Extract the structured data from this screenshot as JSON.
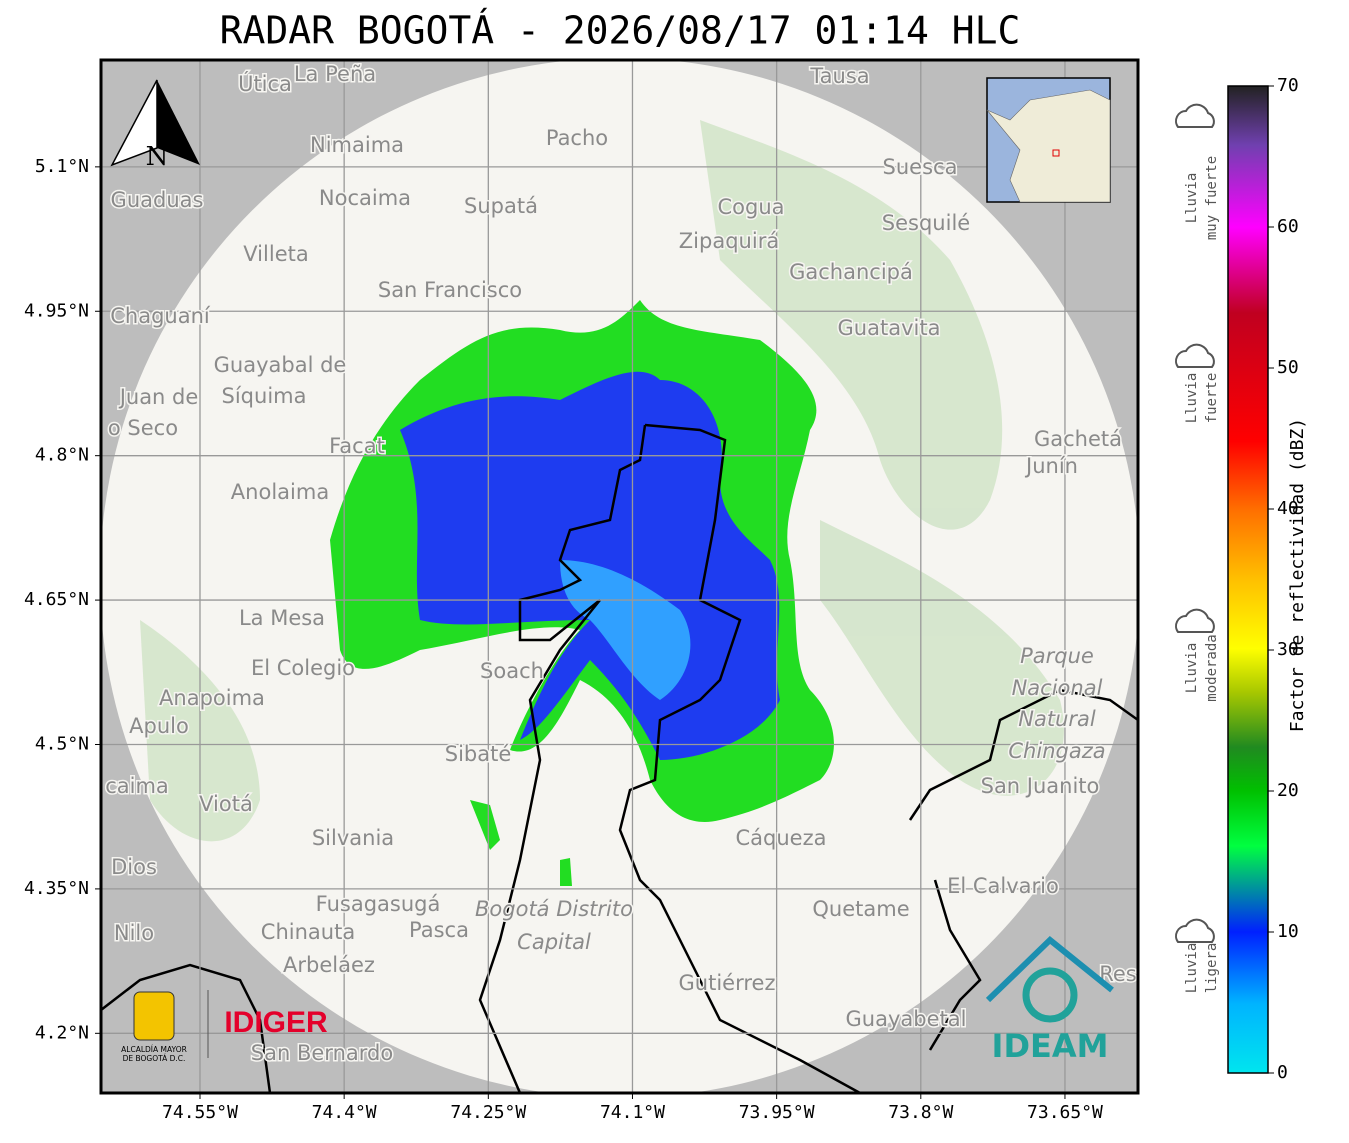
{
  "header": {
    "title": "RADAR BOGOTÁ - 2026/08/17 01:14 HLC"
  },
  "map": {
    "lonlim": [
      -74.653,
      -73.574
    ],
    "latlim": [
      4.138,
      5.211
    ],
    "lon_ticks": [
      {
        "value": -74.55,
        "label": "74.55°W"
      },
      {
        "value": -74.4,
        "label": "74.4°W"
      },
      {
        "value": -74.25,
        "label": "74.25°W"
      },
      {
        "value": -74.1,
        "label": "74.1°W"
      },
      {
        "value": -73.95,
        "label": "73.95°W"
      },
      {
        "value": -73.8,
        "label": "73.8°W"
      },
      {
        "value": -73.65,
        "label": "73.65°W"
      }
    ],
    "lat_ticks": [
      {
        "value": 5.1,
        "label": "5.1°N"
      },
      {
        "value": 4.95,
        "label": "4.95°N"
      },
      {
        "value": 4.8,
        "label": "4.8°N"
      },
      {
        "value": 4.65,
        "label": "4.65°N"
      },
      {
        "value": 4.5,
        "label": "4.5°N"
      },
      {
        "value": 4.35,
        "label": "4.35°N"
      },
      {
        "value": 4.2,
        "label": "4.2°N"
      }
    ],
    "grid": true,
    "north_label": "N",
    "places": [
      "Útica",
      "La Peña",
      "Tausa",
      "Pacho",
      "Nimaima",
      "Guaduas",
      "Nocaima",
      "Supatá",
      "Cogua",
      "Suesca",
      "Sesquilé",
      "Zipaquirá",
      "Villeta",
      "Gachancipá",
      "San Francisco",
      "Chaguaní",
      "Guatavita",
      "Guayabal de",
      "Síquima",
      "Juan de",
      "o Seco",
      "Facat",
      "Gachetá",
      "Junín",
      "Anolaima",
      "La Mesa",
      "El Colegio",
      "Soach",
      "Anapoima",
      "Apulo",
      "Parque",
      "Nacional",
      "Natural",
      "Chingaza",
      "San Juanito",
      "Sibaté",
      "caima",
      "Viotá",
      "Silvania",
      "Cáqueza",
      "Quetame",
      "El Calvario",
      "Dios",
      "Fusagasugá",
      "Bogotá Distrito",
      "Capital",
      "Nilo",
      "Chinauta",
      "Pasca",
      "Arbeláez",
      "Gutiérrez",
      "Guayabetal",
      "San Bernardo",
      "Res"
    ],
    "logos": {
      "alcaldia": [
        "ALCALDÍA MAYOR",
        "DE BOGOTÁ D.C."
      ],
      "idiger": "IDIGER",
      "ideam": "IDEAM"
    }
  },
  "colorbar": {
    "label": "Factor de reflectividad (dBZ)",
    "lim": [
      0,
      70
    ],
    "ticks": [
      0,
      10,
      20,
      30,
      40,
      50,
      60,
      70
    ],
    "categories": [
      [
        "Lluvia",
        "muy fuerte"
      ],
      [
        "Lluvia",
        "fuerte"
      ],
      [
        "Lluvia",
        "moderada"
      ],
      [
        "Lluvia",
        "ligera"
      ]
    ]
  }
}
